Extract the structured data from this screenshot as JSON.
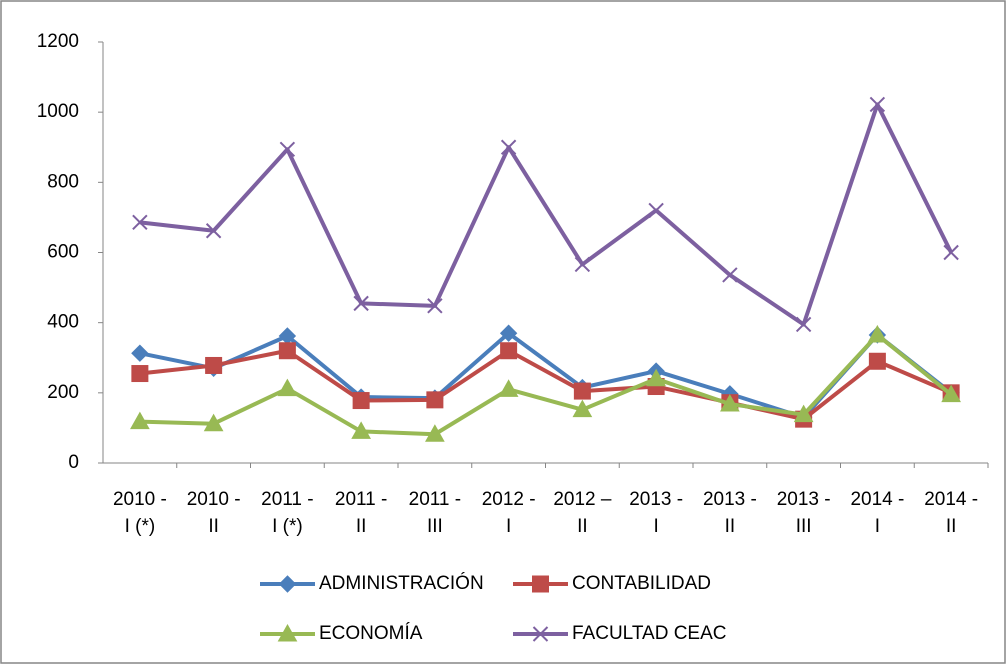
{
  "chart_data": {
    "type": "line",
    "categories": [
      [
        "2010 -",
        "I (*)"
      ],
      [
        "2010 -",
        "II"
      ],
      [
        "2011 -",
        "I (*)"
      ],
      [
        "2011 -",
        "II"
      ],
      [
        "2011 -",
        "III"
      ],
      [
        "2012 -",
        "I"
      ],
      [
        "2012 –",
        "II"
      ],
      [
        "2013 -",
        "I"
      ],
      [
        "2013 -",
        "II"
      ],
      [
        "2013 -",
        "III"
      ],
      [
        "2014 -",
        "I"
      ],
      [
        "2014 -",
        "II"
      ]
    ],
    "series": [
      {
        "name": "ADMINISTRACIÓN",
        "color": "#4a7ebb",
        "marker": "diamond",
        "values": [
          313,
          270,
          362,
          188,
          185,
          370,
          215,
          262,
          197,
          130,
          365,
          200
        ]
      },
      {
        "name": "CONTABILIDAD",
        "color": "#be4b48",
        "marker": "square",
        "values": [
          255,
          278,
          320,
          178,
          180,
          320,
          205,
          218,
          172,
          125,
          290,
          200
        ]
      },
      {
        "name": "ECONOMÍA",
        "color": "#98b954",
        "marker": "triangle",
        "values": [
          118,
          112,
          212,
          90,
          82,
          210,
          152,
          240,
          168,
          138,
          365,
          195
        ]
      },
      {
        "name": "FACULTAD CEAC",
        "color": "#7d60a0",
        "marker": "x",
        "values": [
          686,
          662,
          894,
          455,
          448,
          900,
          566,
          720,
          536,
          395,
          1022,
          600
        ]
      }
    ],
    "ylim": [
      0,
      1200
    ],
    "yticks": [
      0,
      200,
      400,
      600,
      800,
      1000,
      1200
    ],
    "grid": false
  }
}
